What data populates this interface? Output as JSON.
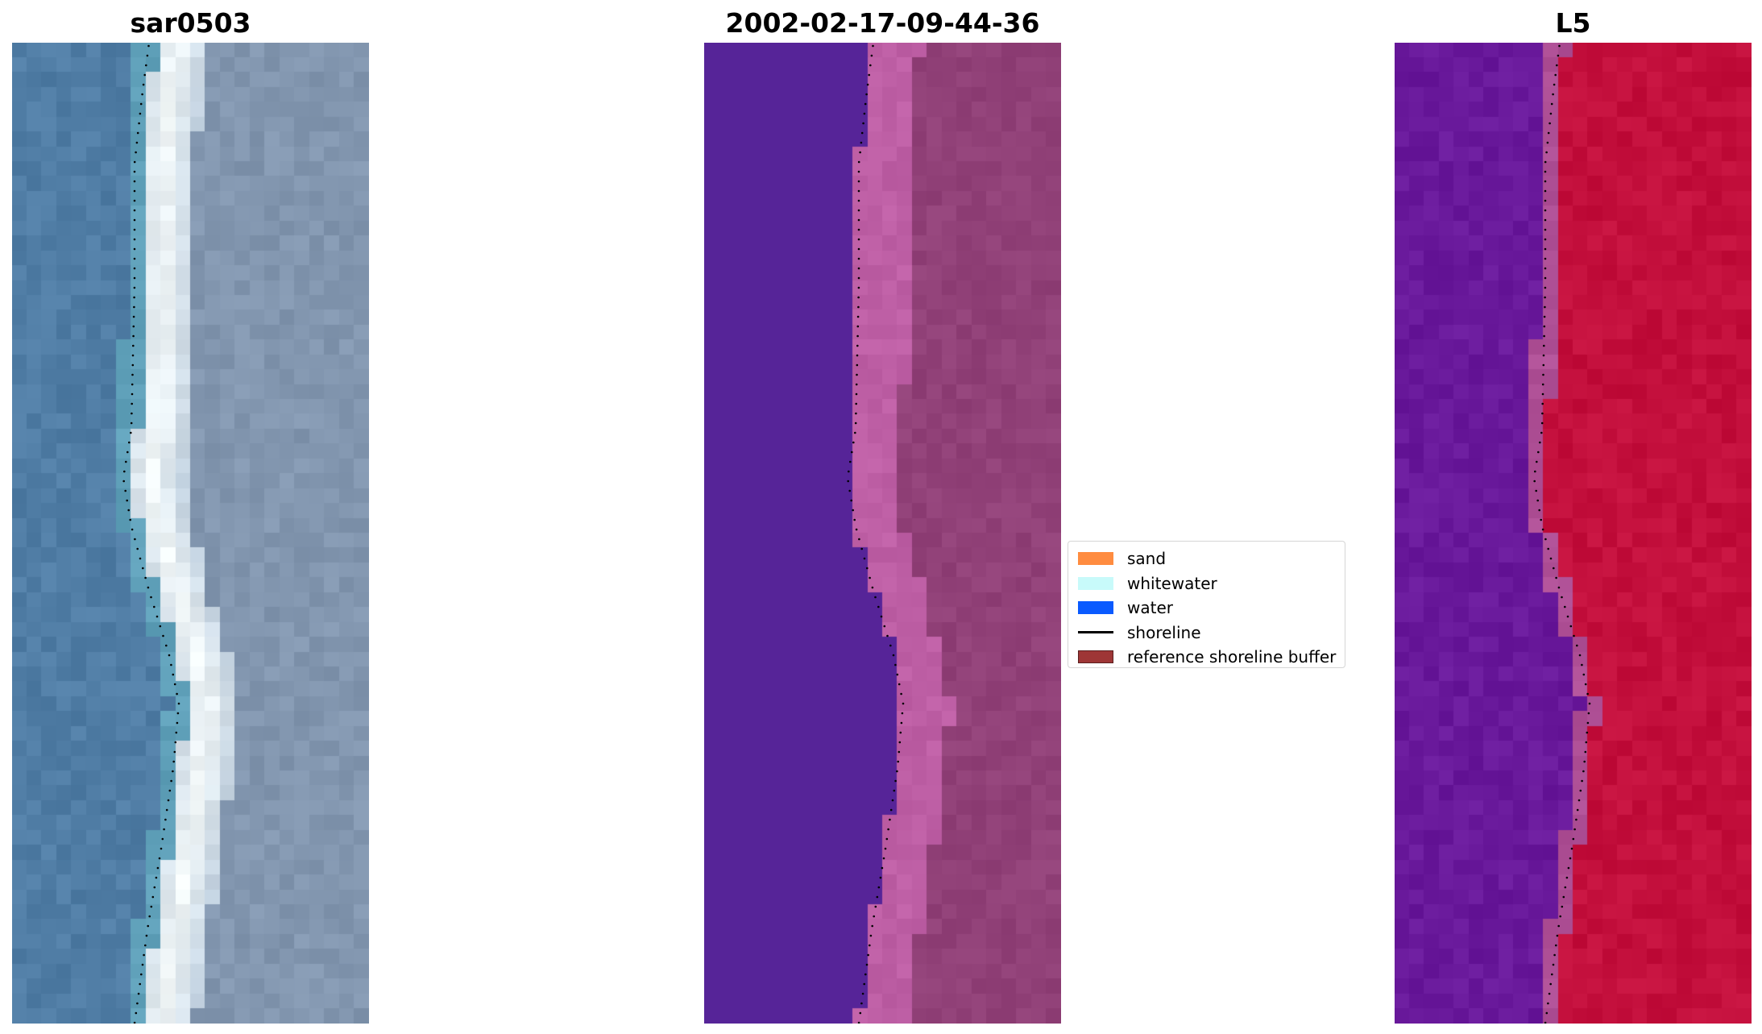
{
  "panels": [
    {
      "title": "sar0503",
      "image": "rgb-satellite-composite",
      "base_color": "#5a7fa3",
      "shoreline_color": "#000000"
    },
    {
      "title": "2002-02-17-09-44-36",
      "image": "classified-image",
      "base_color": "#55239a",
      "shoreline_color": "#000000"
    },
    {
      "title": "L5",
      "image": "index-image",
      "base_color": "#6d1a9c",
      "shoreline_color": "#000000"
    }
  ],
  "legend": {
    "items": [
      {
        "label": "sand",
        "color": "#ff8c40",
        "kind": "patch"
      },
      {
        "label": "whitewater",
        "color": "#c8fafa",
        "kind": "patch"
      },
      {
        "label": "water",
        "color": "#0a5aff",
        "kind": "patch"
      },
      {
        "label": "shoreline",
        "color": "#000000",
        "kind": "line"
      },
      {
        "label": "reference shoreline buffer",
        "color": "#9e3636",
        "kind": "patch"
      }
    ]
  }
}
